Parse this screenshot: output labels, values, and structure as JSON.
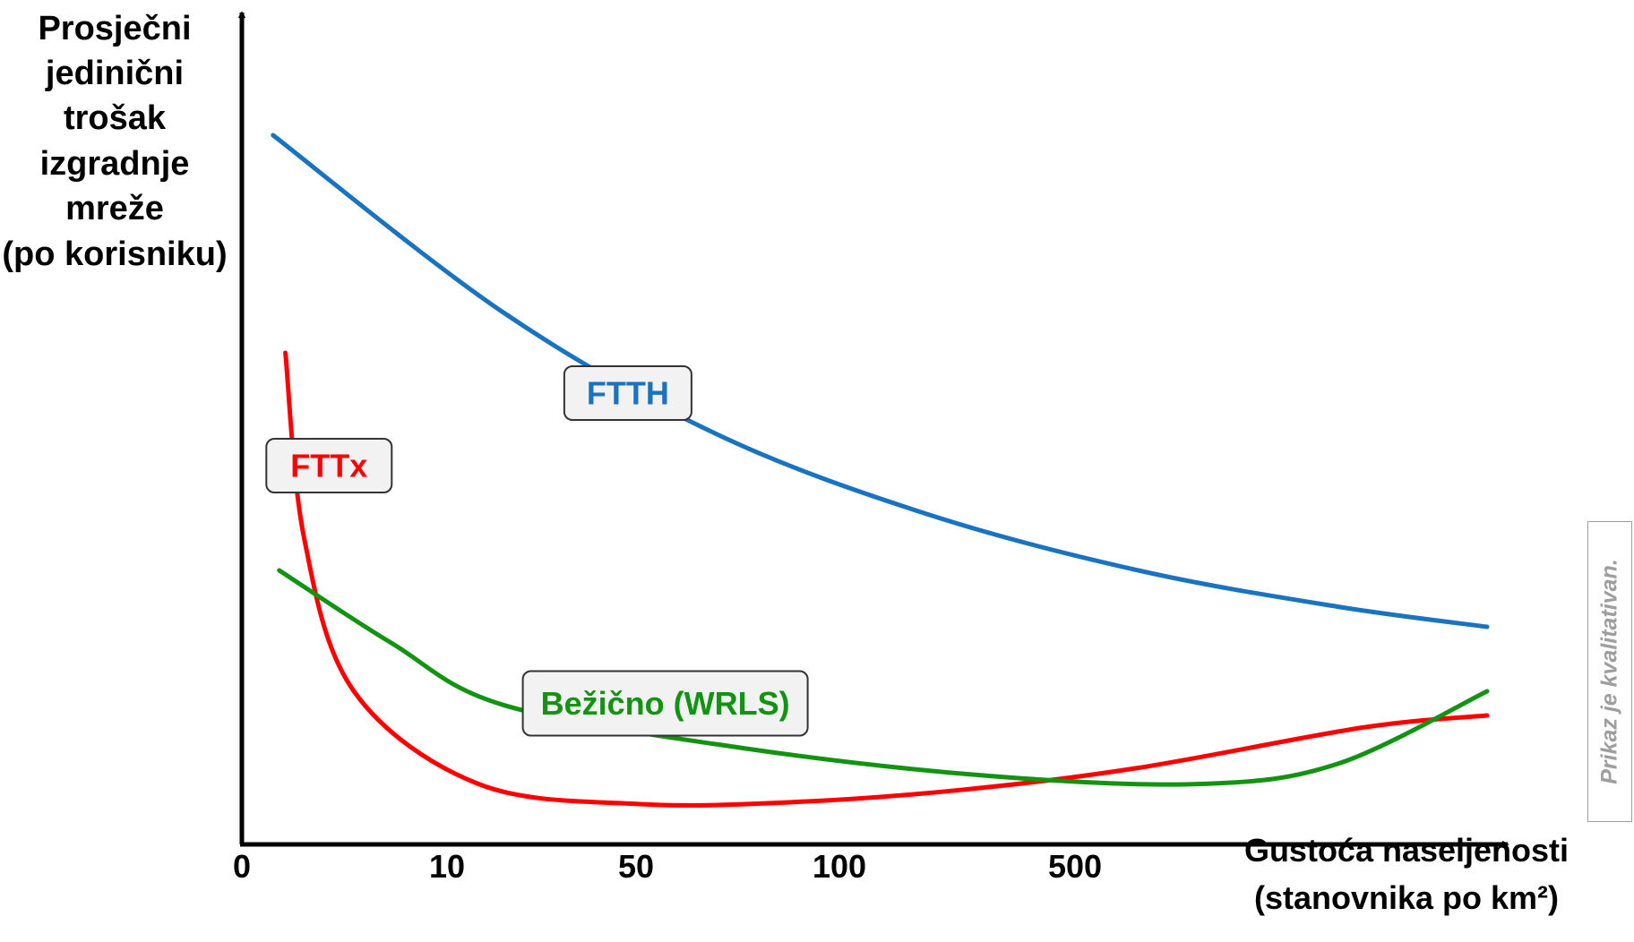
{
  "chart_data": {
    "type": "line",
    "ylabel": [
      "Prosječni",
      "jedinični",
      "trošak",
      "izgradnje",
      "mreže",
      "(po korisniku)"
    ],
    "xlabel": [
      "Gustoća naseljenosti",
      "(stanovnika po km²)"
    ],
    "x_ticks": [
      "0",
      "10",
      "50",
      "100",
      "500"
    ],
    "note": "Prikaz je kvalitativan.",
    "series": [
      {
        "name": "FTTH",
        "color": "#1a73c0",
        "points": [
          [
            2.5,
            88
          ],
          [
            21,
            66
          ],
          [
            38,
            51
          ],
          [
            55,
            41
          ],
          [
            72,
            34
          ],
          [
            88,
            29.5
          ],
          [
            100,
            27
          ]
        ]
      },
      {
        "name": "FTTx",
        "color": "#ff0000",
        "points": [
          [
            3.5,
            61
          ],
          [
            5,
            38
          ],
          [
            9,
            19
          ],
          [
            19,
            7.5
          ],
          [
            32,
            5
          ],
          [
            45,
            5.3
          ],
          [
            58,
            6.8
          ],
          [
            72,
            9.5
          ],
          [
            90,
            14.5
          ],
          [
            100,
            16
          ]
        ]
      },
      {
        "name": "Bežično (WRLS)",
        "color": "#129312",
        "points": [
          [
            3,
            34
          ],
          [
            12,
            25
          ],
          [
            21,
            17.3
          ],
          [
            40,
            12
          ],
          [
            60,
            8.5
          ],
          [
            77,
            7.5
          ],
          [
            88,
            10
          ],
          [
            100,
            19
          ]
        ]
      }
    ],
    "series_labels": [
      {
        "text": "FTTH",
        "series": "FTTH",
        "at": [
          31,
          56
        ]
      },
      {
        "text": "FTTx",
        "series": "FTTx",
        "at": [
          7,
          47
        ]
      },
      {
        "text": "Bežično (WRLS)",
        "series": "Bežično (WRLS)",
        "at": [
          34,
          17.5
        ]
      }
    ],
    "x_range": [
      0,
      100
    ],
    "y_range": [
      0,
      100
    ],
    "grid": false,
    "legend": "inline-boxes"
  }
}
